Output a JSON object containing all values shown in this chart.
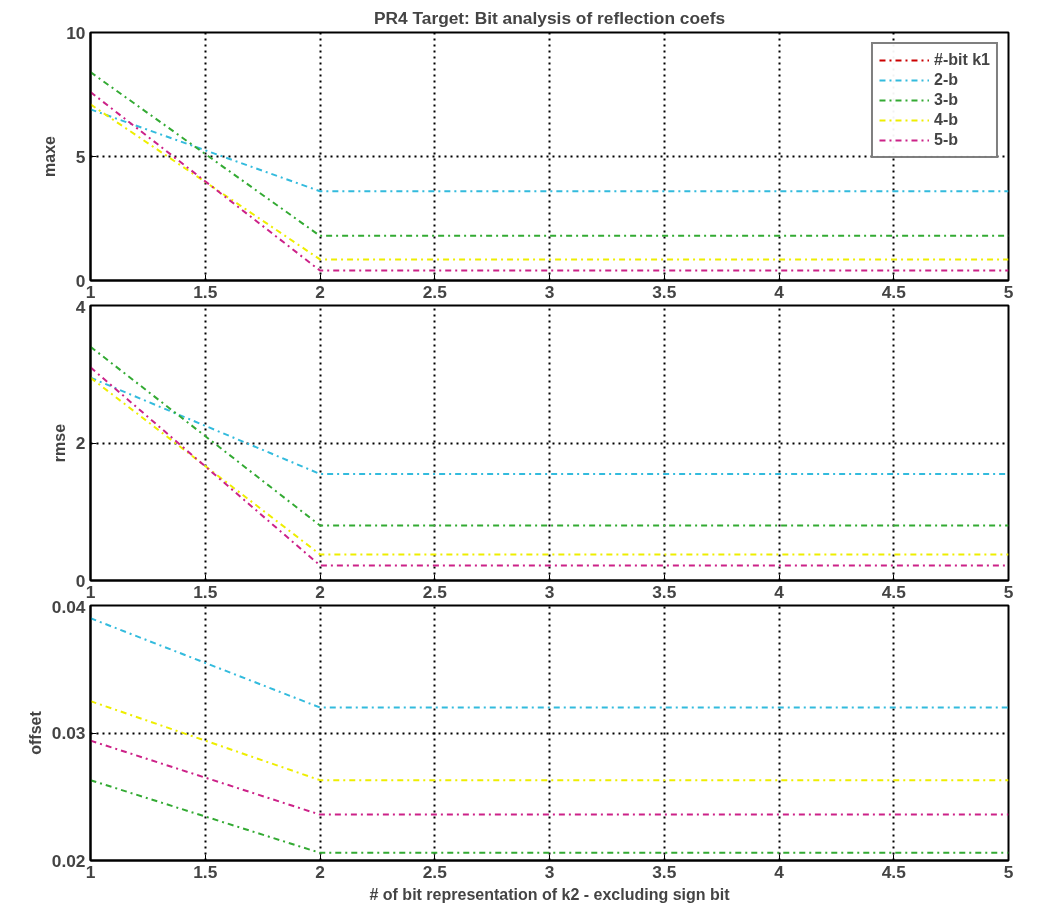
{
  "chart_data": [
    {
      "type": "line",
      "title": "PR4 Target: Bit analysis of reflection coefs",
      "ylabel": "maxe",
      "x": [
        1,
        2,
        3,
        4,
        5
      ],
      "xlim": [
        1,
        5
      ],
      "xticks": [
        1,
        1.5,
        2,
        2.5,
        3,
        3.5,
        4,
        4.5,
        5
      ],
      "ylim": [
        0,
        10
      ],
      "yticks": [
        0,
        5,
        10
      ],
      "grid": true,
      "legend": "top right",
      "line_style": "dashdot",
      "marker": "none",
      "series": [
        {
          "name": "#-bit k1",
          "color": "#cc0000",
          "values": [
            null,
            null,
            null,
            null,
            null
          ]
        },
        {
          "name": "2-b",
          "color": "#33bbdd",
          "values": [
            6.9,
            3.6,
            3.6,
            3.6,
            3.6
          ]
        },
        {
          "name": "3-b",
          "color": "#33aa33",
          "values": [
            8.4,
            1.8,
            1.8,
            1.8,
            1.8
          ]
        },
        {
          "name": "4-b",
          "color": "#eeee00",
          "values": [
            7.1,
            0.85,
            0.85,
            0.85,
            0.85
          ]
        },
        {
          "name": "5-b",
          "color": "#cc2288",
          "values": [
            7.6,
            0.4,
            0.4,
            0.4,
            0.4
          ]
        }
      ]
    },
    {
      "type": "line",
      "ylabel": "rmse",
      "x": [
        1,
        2,
        3,
        4,
        5
      ],
      "xlim": [
        1,
        5
      ],
      "xticks": [
        1,
        1.5,
        2,
        2.5,
        3,
        3.5,
        4,
        4.5,
        5
      ],
      "ylim": [
        0,
        4
      ],
      "yticks": [
        0,
        2,
        4
      ],
      "grid": true,
      "line_style": "dashdot",
      "marker": "none",
      "series": [
        {
          "color": "#33bbdd",
          "values": [
            2.95,
            1.55,
            1.55,
            1.55,
            1.55
          ]
        },
        {
          "color": "#33aa33",
          "values": [
            3.4,
            0.8,
            0.8,
            0.8,
            0.8
          ]
        },
        {
          "color": "#eeee00",
          "values": [
            2.95,
            0.38,
            0.38,
            0.38,
            0.38
          ]
        },
        {
          "color": "#cc2288",
          "values": [
            3.1,
            0.22,
            0.22,
            0.22,
            0.22
          ]
        }
      ]
    },
    {
      "type": "line",
      "ylabel": "offset",
      "xlabel": "# of bit representation of k2 - excluding sign bit",
      "x": [
        1,
        2,
        3,
        4,
        5
      ],
      "xlim": [
        1,
        5
      ],
      "xticks": [
        1,
        1.5,
        2,
        2.5,
        3,
        3.5,
        4,
        4.5,
        5
      ],
      "ylim": [
        0.02,
        0.04
      ],
      "yticks": [
        0.02,
        0.03,
        0.04
      ],
      "grid": true,
      "line_style": "dashdot",
      "marker": "none",
      "series": [
        {
          "color": "#33bbdd",
          "values": [
            0.039,
            0.032,
            0.032,
            0.032,
            0.032
          ]
        },
        {
          "color": "#33aa33",
          "values": [
            0.0263,
            0.0206,
            0.0206,
            0.0206,
            0.0206
          ]
        },
        {
          "color": "#eeee00",
          "values": [
            0.0325,
            0.0263,
            0.0263,
            0.0263,
            0.0263
          ]
        },
        {
          "color": "#cc2288",
          "values": [
            0.0294,
            0.0236,
            0.0236,
            0.0236,
            0.0236
          ]
        }
      ]
    }
  ]
}
